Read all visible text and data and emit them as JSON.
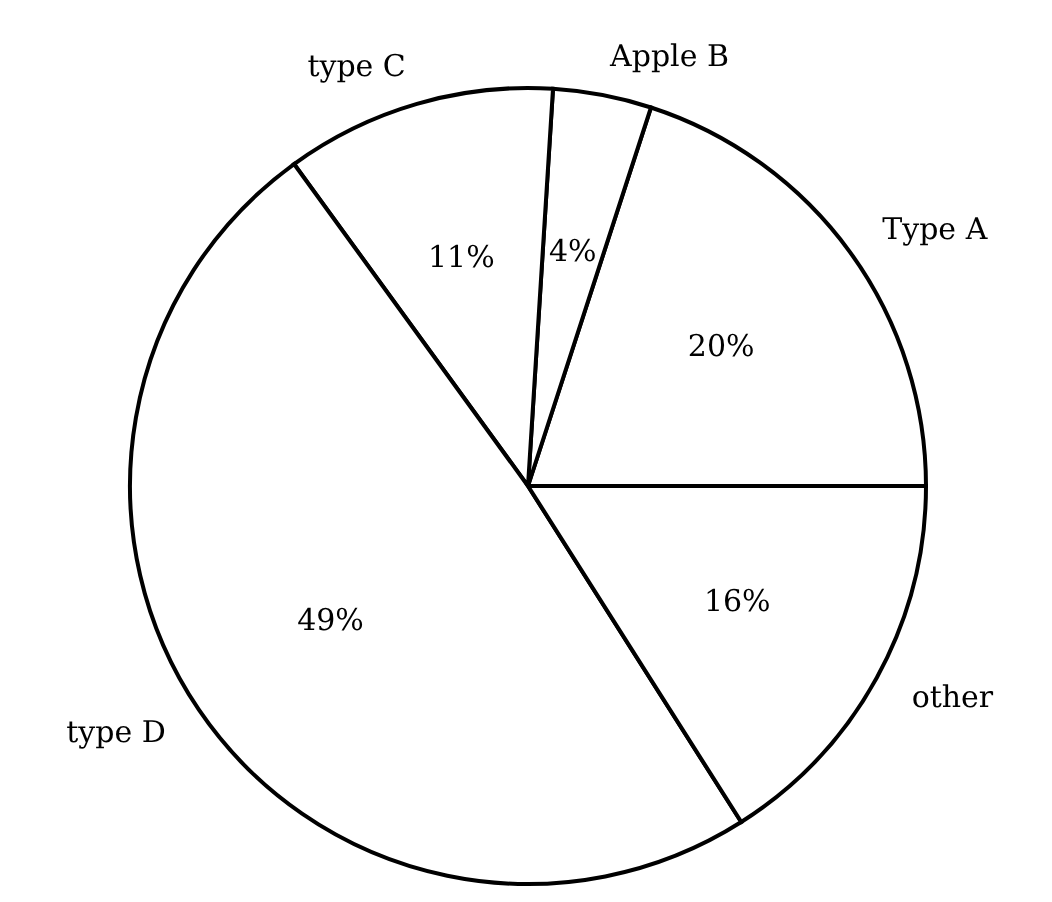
{
  "chart_data": {
    "type": "pie",
    "categories": [
      "Type A",
      "Apple B",
      "type C",
      "type D",
      "other"
    ],
    "values": [
      20,
      4,
      11,
      49,
      16
    ],
    "colors": [
      "#ffffff",
      "#ffffff",
      "#ffffff",
      "#ffffff",
      "#ffffff"
    ],
    "value_labels": [
      "20%",
      "4%",
      "11%",
      "49%",
      "16%"
    ]
  }
}
